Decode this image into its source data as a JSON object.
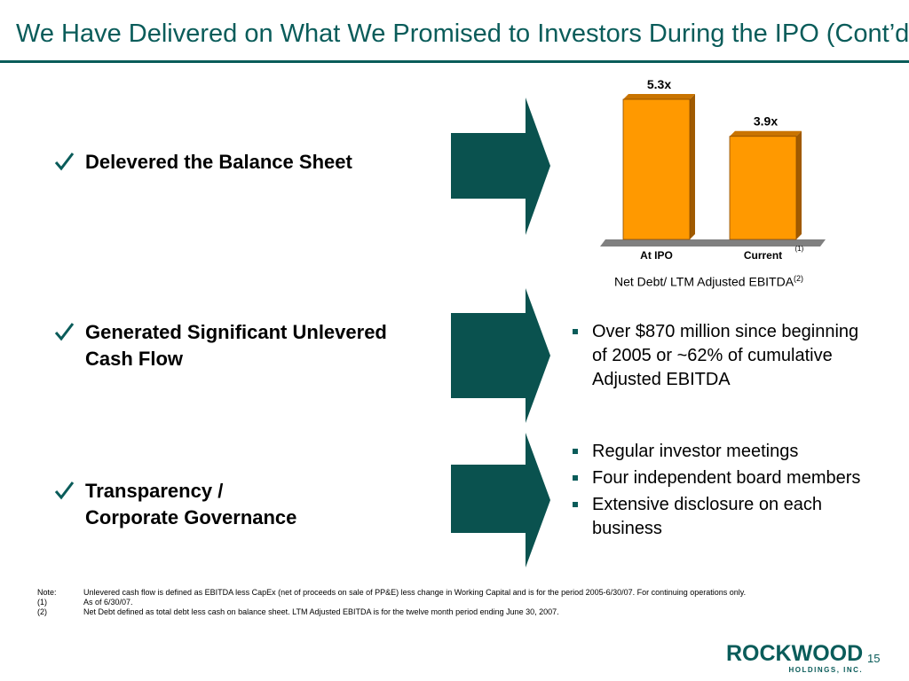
{
  "slide": {
    "title": "We Have Delivered on What We Promised to Investors During the IPO (Cont’d)",
    "page_number": "15"
  },
  "points": [
    {
      "label": "Delevered the Balance Sheet"
    },
    {
      "line1": "Generated Significant Unlevered",
      "line2": "Cash Flow"
    },
    {
      "line1": "Transparency /",
      "line2": "Corporate Governance"
    }
  ],
  "cash_flow_bullets": [
    "Over $870 million since beginning of 2005 or ~62% of cumulative Adjusted EBITDA"
  ],
  "governance_bullets": [
    "Regular investor meetings",
    "Four independent board members",
    "Extensive disclosure on each business"
  ],
  "chart_data": {
    "type": "bar",
    "categories": [
      "At IPO",
      "Current"
    ],
    "category_footnotes": [
      "",
      "(1)"
    ],
    "values": [
      5.3,
      3.9
    ],
    "value_labels": [
      "5.3x",
      "3.9x"
    ],
    "caption": "Net Debt/ LTM Adjusted EBITDA",
    "caption_footnote": "(2)",
    "ylim": [
      0,
      5.3
    ],
    "bar_color": "#ff9900",
    "bar_side_color": "#a05a00",
    "floor_color": "#808080"
  },
  "notes": [
    {
      "label": "Note:",
      "text": "Unlevered cash flow is defined as EBITDA less CapEx (net of proceeds on sale of PP&E) less change in Working Capital and is for the period 2005-6/30/07. For continuing operations only."
    },
    {
      "label": "(1)",
      "text": "As of 6/30/07."
    },
    {
      "label": "(2)",
      "text": "Net Debt defined as total debt less cash on balance sheet. LTM Adjusted EBITDA is for the twelve month period ending June 30, 2007."
    }
  ],
  "logo": {
    "main": "ROCKWOOD",
    "sub": "HOLDINGS, INC."
  },
  "colors": {
    "accent": "#0a5c5a",
    "arrow": "#0a524f"
  }
}
